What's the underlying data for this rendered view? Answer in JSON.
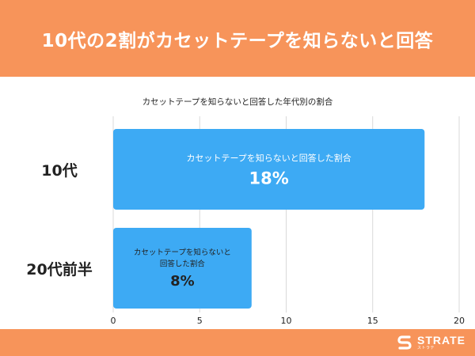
{
  "header": {
    "title": "10代の2割がカセットテープを知らないと回答"
  },
  "colors": {
    "accent": "#f7945a",
    "bar": "#3daaf4",
    "grid": "#d9d9d9",
    "text": "#222222"
  },
  "footer": {
    "logo_icon": "strate-logo-icon",
    "logo_text": "STRATE",
    "logo_sub": "ストラテ"
  },
  "chart_data": {
    "type": "bar",
    "orientation": "horizontal",
    "title": "カセットテープを知らないと回答した年代別の割合",
    "categories": [
      "10代",
      "20代前半"
    ],
    "values": [
      18,
      8
    ],
    "data_labels": [
      {
        "caption_lines": [
          "カセットテープを知らないと回答した割合"
        ],
        "value_label": "18%"
      },
      {
        "caption_lines": [
          "カセットテープを知らないと",
          "回答した割合"
        ],
        "value_label": "8%"
      }
    ],
    "xlim": [
      0,
      20
    ],
    "xticks": [
      0,
      5,
      10,
      15,
      20
    ],
    "xlabel": "",
    "ylabel": "",
    "grid": true
  }
}
